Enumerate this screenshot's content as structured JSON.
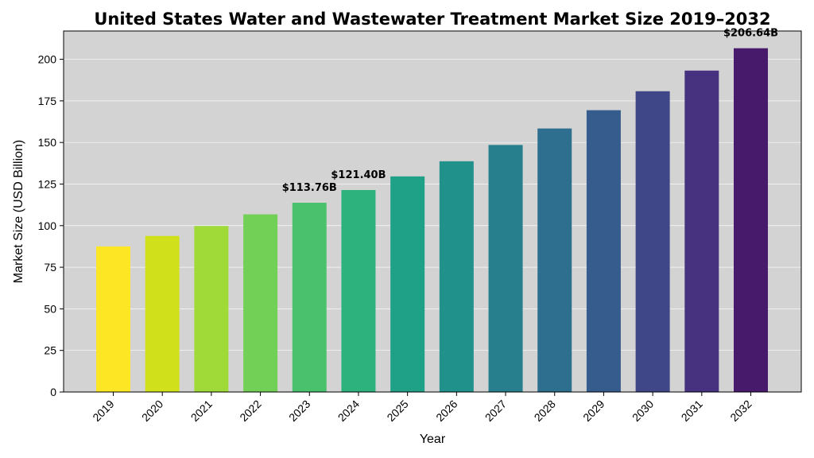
{
  "chart_data": {
    "type": "bar",
    "title": "United States Water and Wastewater Treatment Market Size 2019–2032",
    "xlabel": "Year",
    "ylabel": "Market Size (USD Billion)",
    "ylim": [
      0,
      217
    ],
    "yticks": [
      0,
      25,
      50,
      75,
      100,
      125,
      150,
      175,
      200
    ],
    "grid": true,
    "categories": [
      "2019",
      "2020",
      "2021",
      "2022",
      "2023",
      "2024",
      "2025",
      "2026",
      "2027",
      "2028",
      "2029",
      "2030",
      "2031",
      "2032"
    ],
    "values": [
      87.5,
      93.8,
      99.8,
      106.8,
      113.76,
      121.4,
      129.6,
      138.7,
      148.5,
      158.4,
      169.4,
      180.8,
      193.2,
      206.64
    ],
    "colors": [
      "#fde725",
      "#d0e11c",
      "#a0da39",
      "#73d056",
      "#4ac16d",
      "#2db27d",
      "#1fa187",
      "#21918c",
      "#277f8e",
      "#2e6e8e",
      "#365c8d",
      "#3f4788",
      "#46327e",
      "#481a6c"
    ],
    "data_labels": [
      {
        "index": 4,
        "text": "$113.76B"
      },
      {
        "index": 5,
        "text": "$121.40B"
      },
      {
        "index": 13,
        "text": "$206.64B"
      }
    ],
    "plot_background": "#d3d3d3",
    "grid_color": "#ffffff"
  }
}
